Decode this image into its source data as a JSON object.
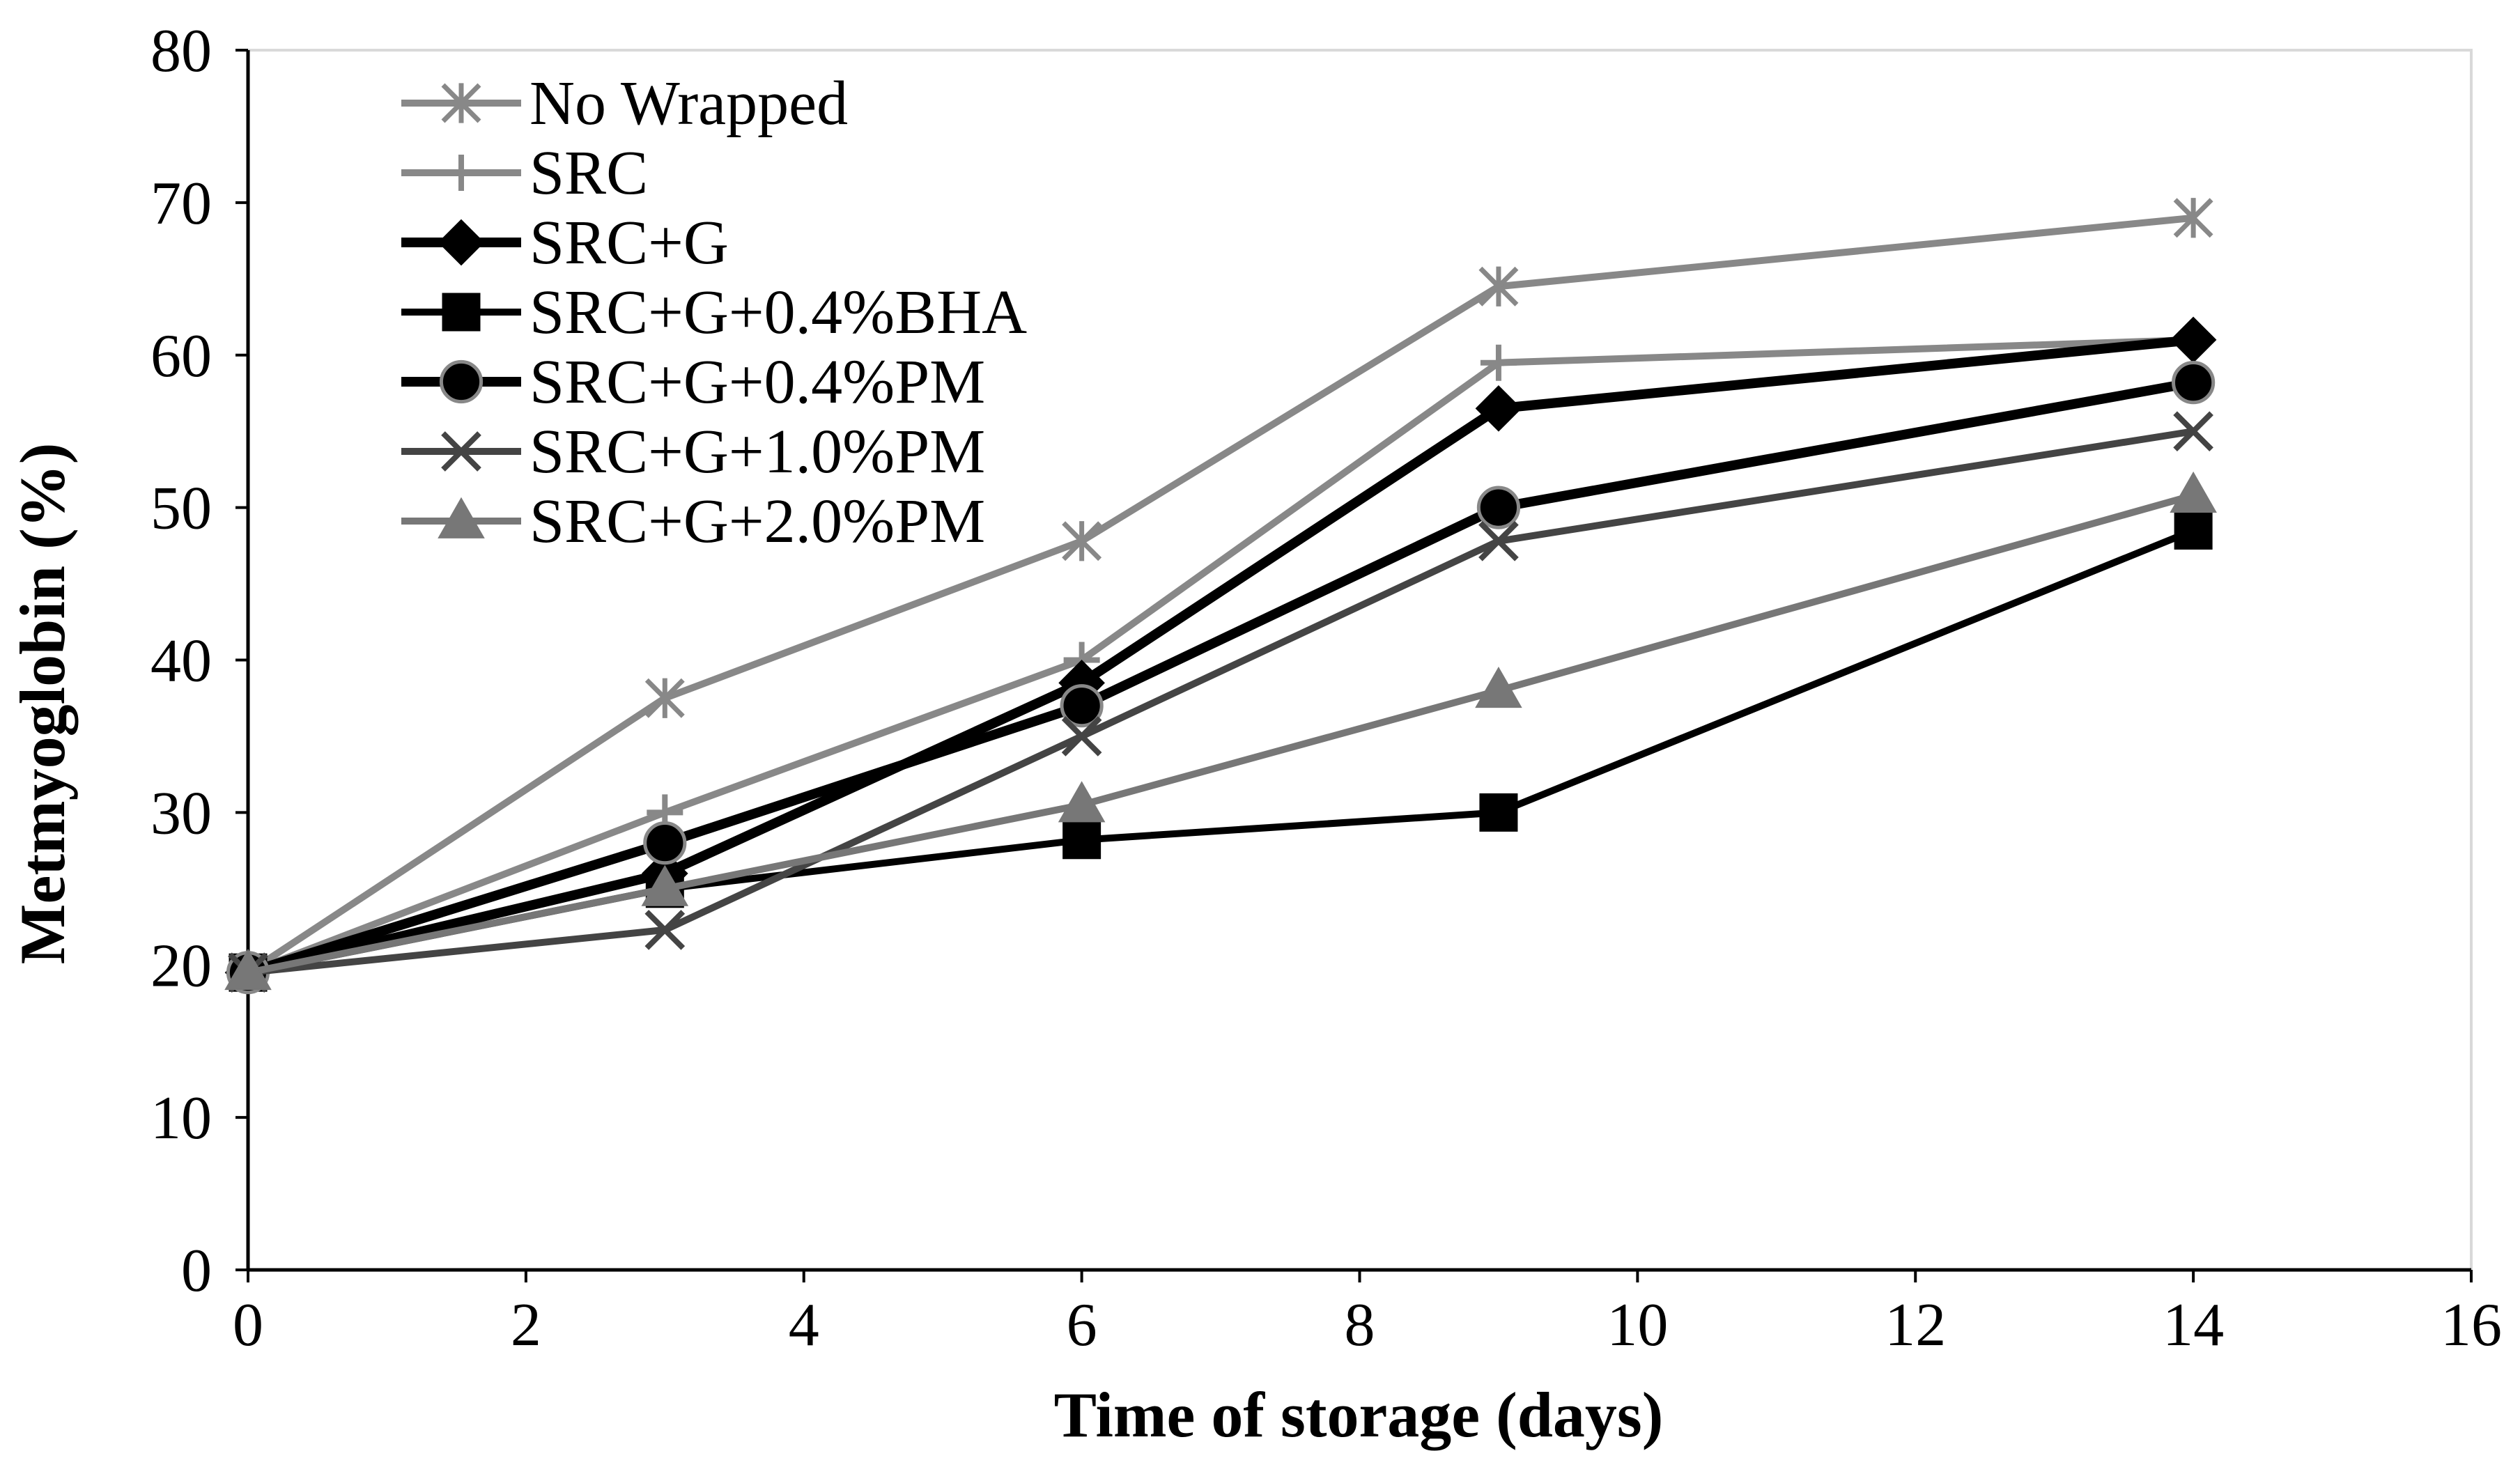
{
  "chart_data": {
    "type": "line",
    "title": "",
    "xlabel": "Time of storage (days)",
    "ylabel": "Metmyoglobin (%)",
    "xlim": [
      0,
      16
    ],
    "ylim": [
      0,
      80
    ],
    "xticks": [
      0,
      2,
      4,
      6,
      8,
      10,
      12,
      14,
      16
    ],
    "yticks": [
      0,
      10,
      20,
      30,
      40,
      50,
      60,
      70,
      80
    ],
    "xtick_labels": [
      "0",
      "2",
      "4",
      "6",
      "8",
      "10",
      "12",
      "14",
      "16"
    ],
    "ytick_labels": [
      "0",
      "10",
      "20",
      "30",
      "40",
      "50",
      "60",
      "70",
      "80"
    ],
    "grid": false,
    "legend_position": "top-left",
    "x": [
      0,
      3,
      6,
      9,
      14
    ],
    "series": [
      {
        "name": "No Wrapped",
        "values": [
          19.5,
          37.5,
          47.8,
          64.5,
          69.0
        ],
        "color": "#888888",
        "marker": "asterisk",
        "width": 10
      },
      {
        "name": "SRC",
        "values": [
          19.5,
          30.0,
          40.0,
          59.5,
          61.0
        ],
        "color": "#888888",
        "marker": "plus",
        "width": 10
      },
      {
        "name": "SRC+G",
        "values": [
          19.5,
          26.0,
          38.5,
          56.5,
          61.0
        ],
        "color": "#000000",
        "marker": "diamond",
        "width": 14
      },
      {
        "name": "SRC+G+0.4%BHA",
        "values": [
          19.5,
          25.0,
          28.2,
          30.0,
          48.5
        ],
        "color": "#000000",
        "marker": "square",
        "width": 10
      },
      {
        "name": "SRC+G+0.4%PM",
        "values": [
          19.5,
          28.0,
          37.0,
          50.0,
          58.2
        ],
        "color": "#000000",
        "marker": "circle",
        "width": 14
      },
      {
        "name": "SRC+G+1.0%PM",
        "values": [
          19.5,
          22.3,
          35.0,
          47.8,
          55.0
        ],
        "color": "#444444",
        "marker": "x",
        "width": 10
      },
      {
        "name": "SRC+G+2.0%PM",
        "values": [
          19.5,
          25.0,
          30.5,
          38.0,
          50.8
        ],
        "color": "#777777",
        "marker": "triangle",
        "width": 10
      }
    ]
  }
}
